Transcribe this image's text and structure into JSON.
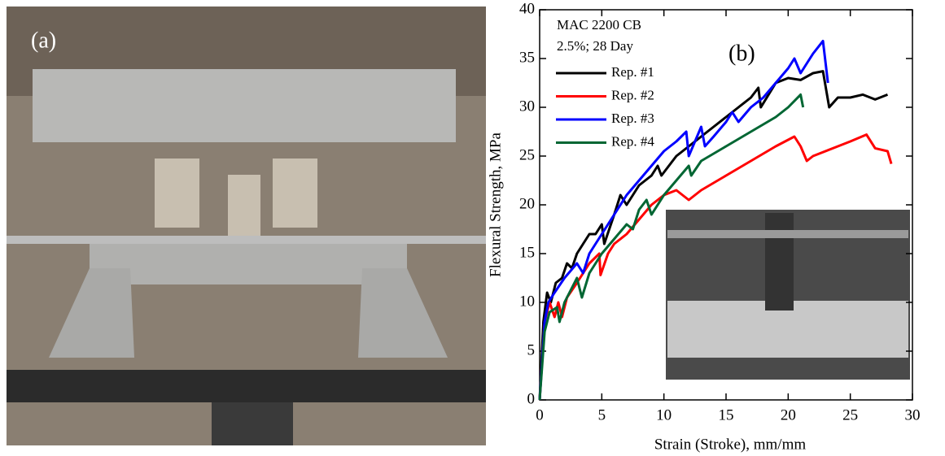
{
  "photo_label": "(a)",
  "chart_data": {
    "type": "line",
    "xlabel": "Strain (Stroke), mm/mm",
    "ylabel": "Flexural Strength, MPa",
    "annotations": [
      "MAC 2200 CB",
      "2.5%; 28 Day",
      "(b)"
    ],
    "xlim": [
      0,
      30
    ],
    "xticks": [
      0,
      5,
      10,
      15,
      20,
      25,
      30
    ],
    "ylim": [
      0,
      40
    ],
    "yticks": [
      0,
      5,
      10,
      15,
      20,
      25,
      30,
      35,
      40
    ],
    "legend": "upper-left",
    "series": [
      {
        "name": "Rep. #1",
        "color": "#000000",
        "x": [
          0,
          0.3,
          0.6,
          0.9,
          1.3,
          1.8,
          2.2,
          2.6,
          3,
          3.5,
          4,
          4.5,
          5,
          5.2,
          6,
          6.5,
          7,
          8,
          9,
          9.5,
          9.8,
          11,
          12,
          13,
          14,
          15,
          16,
          17,
          17.6,
          17.8,
          19,
          20,
          21,
          22,
          22.8,
          23.3,
          24,
          25,
          26,
          27,
          28
        ],
        "values": [
          0,
          8,
          11,
          10,
          12,
          12.5,
          14,
          13.5,
          15,
          16,
          17,
          17,
          18,
          16,
          19,
          21,
          20,
          22,
          23,
          24,
          23,
          25,
          26,
          27,
          28,
          29,
          30,
          31,
          32,
          30,
          32.5,
          33,
          32.8,
          33.5,
          33.7,
          30,
          31,
          31,
          31.3,
          30.8,
          31.3
        ]
      },
      {
        "name": "Rep. #2",
        "color": "#ff0000",
        "x": [
          0,
          0.4,
          0.8,
          1.2,
          1.5,
          1.8,
          2.2,
          3,
          4,
          4.8,
          4.9,
          5.5,
          6,
          7,
          8,
          9,
          10,
          11,
          11.5,
          12,
          13,
          15,
          17,
          19,
          20.5,
          21,
          21.5,
          22,
          24,
          25,
          26.3,
          27,
          28,
          28.3
        ],
        "values": [
          0,
          8,
          10,
          8.5,
          10,
          8.5,
          10.5,
          12,
          14,
          15,
          12.8,
          15,
          16,
          17,
          18.5,
          20,
          21,
          21.5,
          21,
          20.5,
          21.5,
          23,
          24.5,
          26,
          27,
          26,
          24.5,
          25,
          26,
          26.5,
          27.2,
          25.8,
          25.5,
          24.2
        ]
      },
      {
        "name": "Rep. #3",
        "color": "#0000ff",
        "x": [
          0,
          0.4,
          0.7,
          1.2,
          2,
          3,
          3.5,
          4,
          5,
          6,
          7,
          8,
          9,
          10,
          11,
          11.8,
          12,
          12.5,
          13,
          13.3,
          14,
          15,
          15.5,
          16,
          17,
          18,
          19,
          20,
          20.5,
          21,
          22,
          22.8,
          23.2
        ],
        "values": [
          0,
          8,
          10,
          11,
          12.5,
          14,
          13,
          15,
          17,
          19,
          21,
          22.5,
          24,
          25.5,
          26.5,
          27.5,
          25,
          26.5,
          28,
          26,
          27,
          28.5,
          29.5,
          28.5,
          30,
          31,
          32.5,
          34,
          35,
          33.5,
          35.5,
          36.8,
          32.5
        ]
      },
      {
        "name": "Rep. #4",
        "color": "#006633",
        "x": [
          0,
          0.4,
          0.8,
          1.4,
          1.6,
          2,
          3,
          3.4,
          4,
          5,
          6,
          7,
          7.5,
          8,
          8.6,
          9,
          10,
          11,
          12,
          12.2,
          13,
          15,
          17,
          19,
          20,
          21,
          21.2
        ],
        "values": [
          0,
          7,
          9,
          9.5,
          8,
          10,
          12.5,
          10.5,
          13,
          15,
          16.5,
          18,
          17.5,
          19.5,
          20.5,
          19,
          21,
          22.5,
          24,
          23,
          24.5,
          26,
          27.5,
          29,
          30,
          31.3,
          30
        ]
      }
    ]
  }
}
